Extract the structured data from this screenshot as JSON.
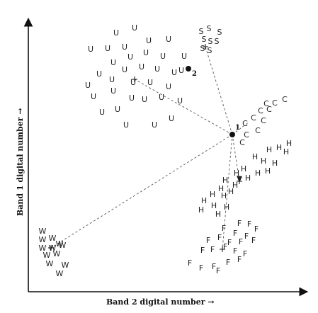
{
  "axes": {
    "x_label": "Band 2 digital number →",
    "y_label": "Band 1 digital number →"
  },
  "markers": {
    "pixel_1": {
      "label": "1"
    },
    "pixel_2": {
      "label": "2"
    }
  },
  "class_symbols": [
    "U",
    "S",
    "C",
    "H",
    "F",
    "W"
  ],
  "colors": {
    "ink": "#111111",
    "line": "#555555"
  }
}
